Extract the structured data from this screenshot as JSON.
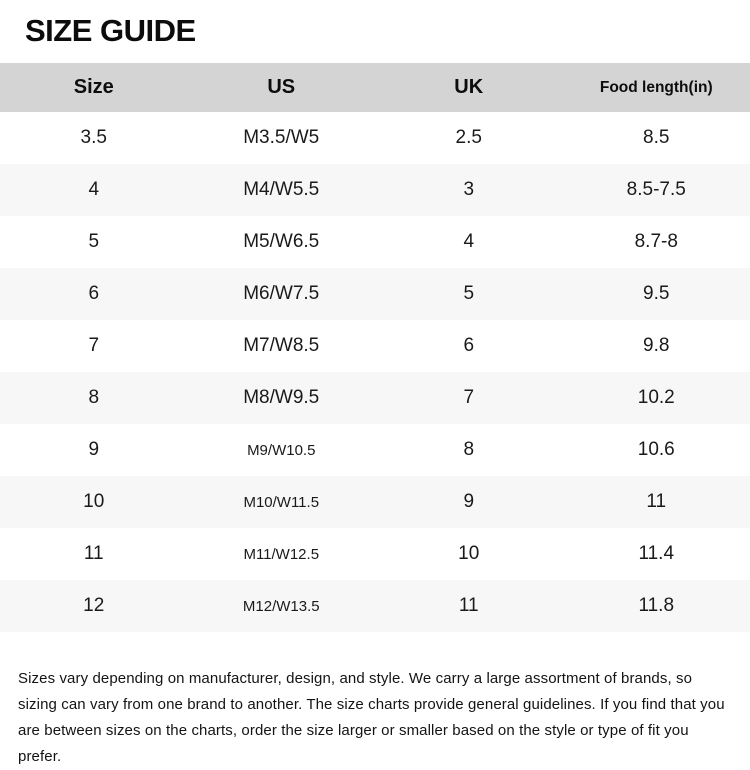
{
  "page": {
    "title": "SIZE GUIDE"
  },
  "table": {
    "headers": [
      "Size",
      "US",
      "UK",
      "Food length(in)"
    ],
    "rows": [
      [
        "3.5",
        "M3.5/W5",
        "2.5",
        "8.5"
      ],
      [
        "4",
        "M4/W5.5",
        "3",
        "8.5-7.5"
      ],
      [
        "5",
        "M5/W6.5",
        "4",
        "8.7-8"
      ],
      [
        "6",
        "M6/W7.5",
        "5",
        "9.5"
      ],
      [
        "7",
        "M7/W8.5",
        "6",
        "9.8"
      ],
      [
        "8",
        "M8/W9.5",
        "7",
        "10.2"
      ],
      [
        "9",
        "M9/W10.5",
        "8",
        "10.6"
      ],
      [
        "10",
        "M10/W11.5",
        "9",
        "11"
      ],
      [
        "11",
        "M11/W12.5",
        "10",
        "11.4"
      ],
      [
        "12",
        "M12/W13.5",
        "11",
        "11.8"
      ]
    ]
  },
  "footer": {
    "note": "Sizes vary depending on manufacturer, design, and style. We carry a large assortment of brands, so sizing can vary from one brand to another. The size charts provide general guidelines. If you find that you are between sizes on the charts, order the size larger or smaller based on the style or type of fit you prefer."
  },
  "colors": {
    "header_bg": "#d4d4d4",
    "stripe_bg": "#f7f7f7",
    "text": "#1a1a1a"
  }
}
